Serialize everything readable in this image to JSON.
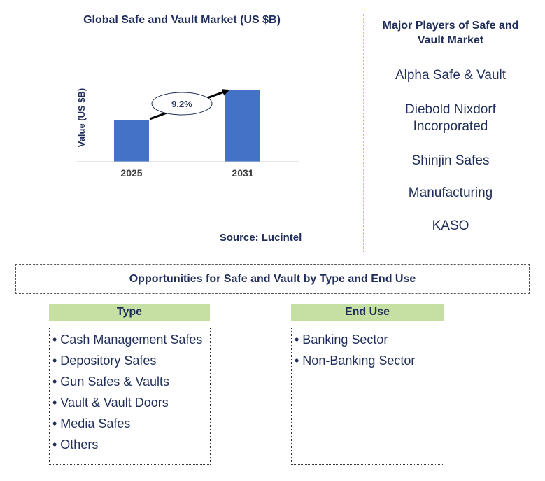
{
  "chart_data": {
    "type": "bar",
    "title": "Global Safe and Vault Market (US $B)",
    "ylabel": "Value (US $B)",
    "categories": [
      "2025",
      "2031"
    ],
    "values": [
      1.0,
      1.7
    ],
    "annotation": "9.2%",
    "source": "Source: Lucintel",
    "bar_color": "#4472c4"
  },
  "players": {
    "title": "Major Players of Safe and Vault Market",
    "items": [
      "Alpha Safe & Vault",
      "Diebold Nixdorf Incorporated",
      "Shinjin Safes",
      "Manufacturing",
      "KASO"
    ]
  },
  "opportunities": {
    "title": "Opportunities for Safe and Vault by Type and End Use",
    "type_header": "Type",
    "type_items": [
      "• Cash Management Safes",
      "• Depository Safes",
      "• Gun Safes & Vaults",
      "• Vault & Vault Doors",
      "• Media Safes",
      "• Others"
    ],
    "enduse_header": "End Use",
    "enduse_items": [
      "• Banking Sector",
      "• Non-Banking Sector"
    ]
  }
}
